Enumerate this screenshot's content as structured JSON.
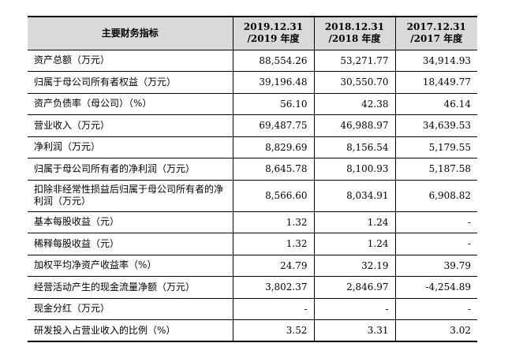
{
  "table": {
    "headers": [
      "主要财务指标",
      "2019.12.31\n/2019 年度",
      "2018.12.31\n/2018 年度",
      "2017.12.31\n/2017 年度"
    ],
    "rows": [
      {
        "label": "资产总额（万元）",
        "values": [
          "88,554.26",
          "53,271.77",
          "34,914.93"
        ]
      },
      {
        "label": "归属于母公司所有者权益（万元）",
        "values": [
          "39,196.48",
          "30,550.70",
          "18,449.77"
        ]
      },
      {
        "label": "资产负债率（母公司）（%）",
        "values": [
          "56.10",
          "42.38",
          "46.14"
        ]
      },
      {
        "label": "营业收入（万元）",
        "values": [
          "69,487.75",
          "46,988.97",
          "34,639.53"
        ]
      },
      {
        "label": "净利润（万元）",
        "values": [
          "8,829.69",
          "8,156.54",
          "5,179.55"
        ]
      },
      {
        "label": "归属于母公司所有者的净利润（万元）",
        "values": [
          "8,645.78",
          "8,100.93",
          "5,187.58"
        ]
      },
      {
        "label": "扣除非经常性损益后归属于母公司所有者的净利润（万元）",
        "values": [
          "8,566.60",
          "8,034.91",
          "6,908.82"
        ]
      },
      {
        "label": "基本每股收益（元）",
        "values": [
          "1.32",
          "1.24",
          "-"
        ]
      },
      {
        "label": "稀释每股收益（元）",
        "values": [
          "1.32",
          "1.24",
          "-"
        ]
      },
      {
        "label": "加权平均净资产收益率（%）",
        "values": [
          "24.79",
          "32.19",
          "39.79"
        ]
      },
      {
        "label": "经营活动产生的现金流量净额（万元）",
        "values": [
          "3,802.37",
          "2,846.97",
          "-4,254.89"
        ]
      },
      {
        "label": "现金分红（万元）",
        "values": [
          "-",
          "-",
          "-"
        ]
      },
      {
        "label": "研发投入占营业收入的比例（%）",
        "values": [
          "3.52",
          "3.31",
          "3.02"
        ]
      }
    ]
  }
}
